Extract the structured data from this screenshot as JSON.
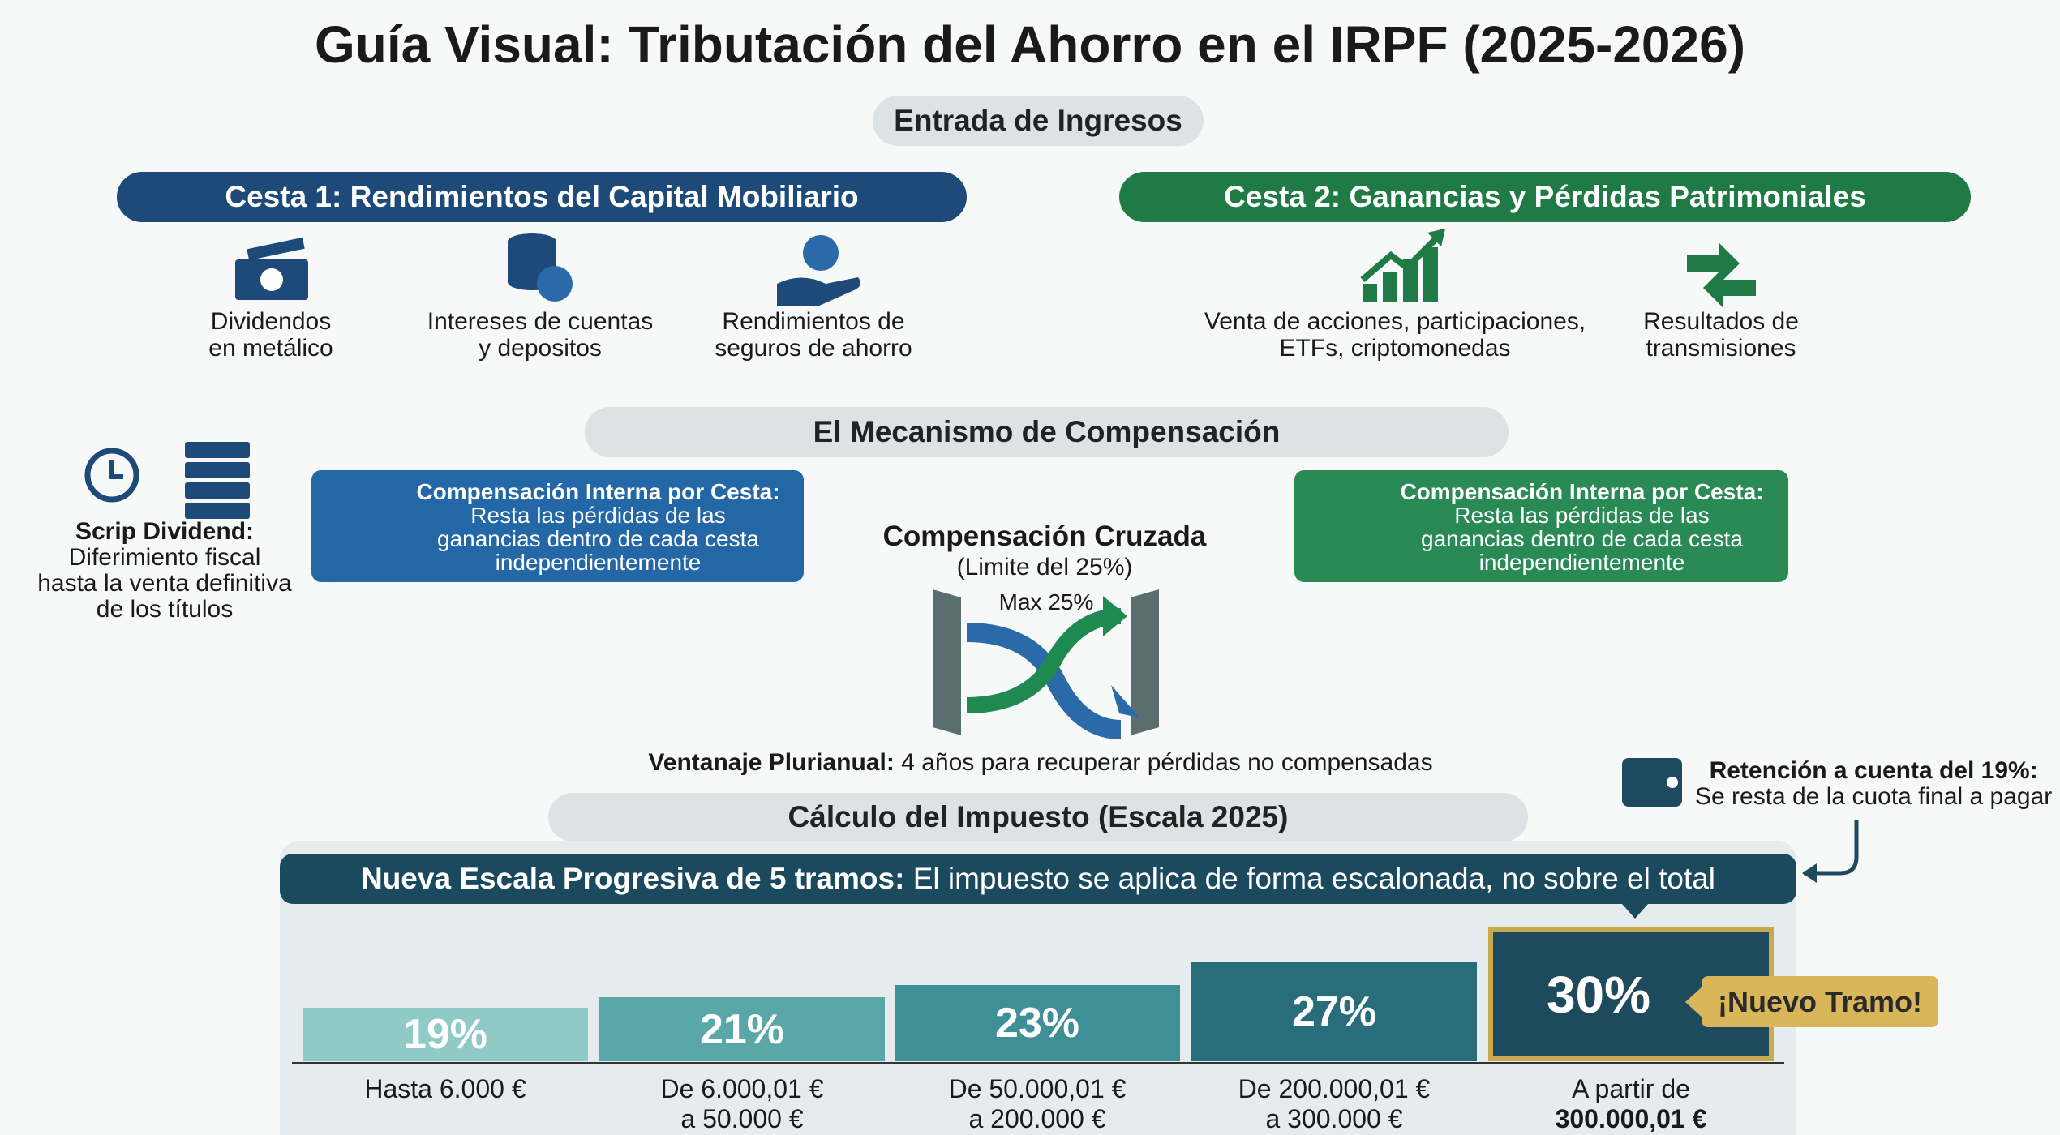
{
  "title": "Guía Visual: Tributación del Ahorro en el IRPF (2025-2026)",
  "input": {
    "label": "Entrada de Ingresos"
  },
  "baskets": [
    {
      "title": "Cesta 1: Rendimientos del Capital Mobiliario",
      "items": [
        {
          "lines": [
            "Dividendos",
            "en metálico"
          ]
        },
        {
          "lines": [
            "Intereses de cuentas",
            "y depositos"
          ]
        },
        {
          "lines": [
            "Rendimientos de",
            "seguros de ahorro"
          ]
        }
      ]
    },
    {
      "title": "Cesta 2: Ganancias y Pérdidas Patrimoniales",
      "items": [
        {
          "lines": [
            "Venta de acciones, participaciones,",
            "ETFs, criptomonedas"
          ]
        },
        {
          "lines": [
            "Resultados de",
            "transmisiones"
          ]
        }
      ]
    }
  ],
  "scrip": {
    "lines": [
      "Scrip Dividend:",
      "Diferimiento fiscal",
      "hasta la venta definitiva",
      "de los títulos"
    ]
  },
  "compensation": {
    "title": "El Mecanismo de Compensación",
    "internal": [
      {
        "lines": [
          "Compensación Interna por Cesta:",
          "Resta las pérdidas de las",
          "ganancias dentro de cada cesta",
          "independientemente"
        ]
      },
      {
        "lines": [
          "Compensación Interna por Cesta:",
          "Resta las pérdidas de las",
          "ganancias dentro de cada cesta",
          "independientemente"
        ]
      }
    ],
    "cross": {
      "title": "Compensación Cruzada",
      "subtitle": "(Limite del 25%)",
      "max": "Max 25%"
    },
    "carryforward": {
      "bold": "Ventanaje Plurianual:",
      "text": "4 años para recuperar pérdidas no compensadas"
    }
  },
  "withholding": {
    "lines": [
      "Retención a cuenta del 19%:",
      "Se resta de la cuota final a pagar"
    ]
  },
  "calculation": {
    "title": "Cálculo del Impuesto (Escala 2025)",
    "banner": {
      "bold": "Nueva Escala Progresiva de 5 tramos:",
      "text": "El impuesto se aplica de forma escalonada, no sobre el total"
    },
    "brackets": [
      {
        "rate": "19%",
        "lines": [
          "Hasta 6.000 €"
        ]
      },
      {
        "rate": "21%",
        "lines": [
          "De 6.000,01 €",
          "a 50.000 €"
        ]
      },
      {
        "rate": "23%",
        "lines": [
          "De 50.000,01 €",
          "a 200.000 €"
        ]
      },
      {
        "rate": "27%",
        "lines": [
          "De 200.000,01 €",
          "a 300.000 €"
        ]
      },
      {
        "rate": "30%",
        "lines": [
          "A partir de",
          "300.000,01 €"
        ]
      }
    ],
    "badge": "¡Nuevo Tramo!"
  }
}
